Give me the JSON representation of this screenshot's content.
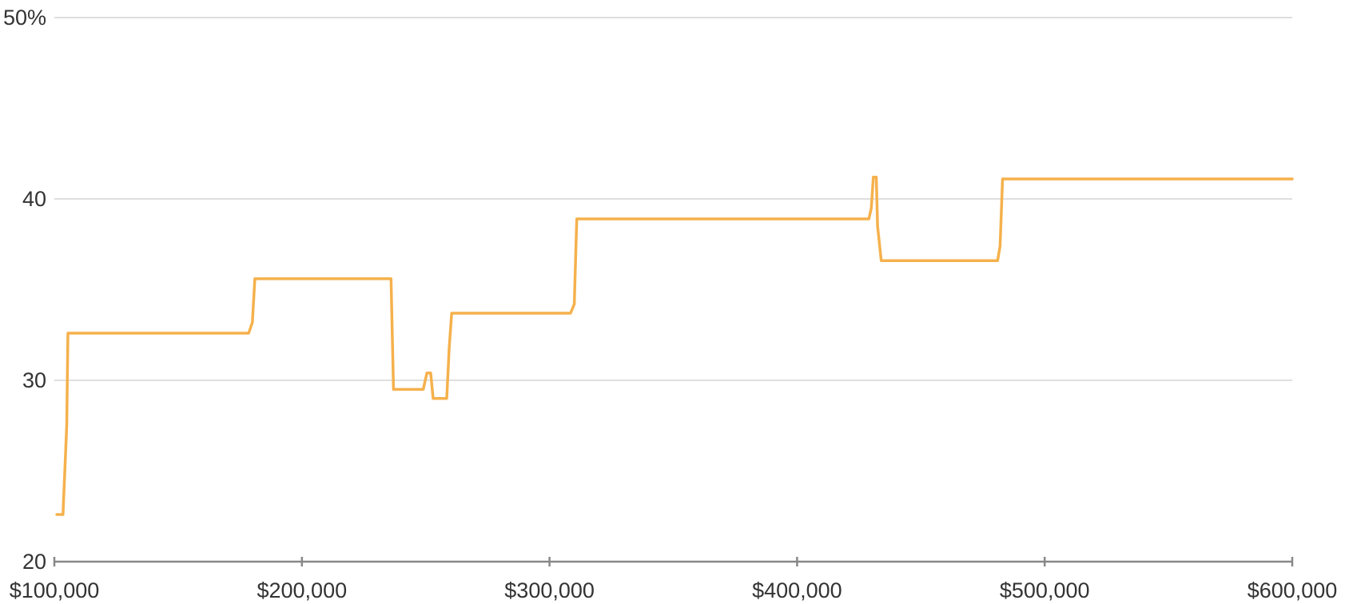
{
  "chart_data": {
    "type": "line",
    "title": "",
    "xlabel": "",
    "ylabel": "",
    "xlim": [
      100000,
      600000
    ],
    "ylim": [
      20,
      50
    ],
    "x_ticks": [
      {
        "value": 100000,
        "label": "$100,000"
      },
      {
        "value": 200000,
        "label": "$200,000"
      },
      {
        "value": 300000,
        "label": "$300,000"
      },
      {
        "value": 400000,
        "label": "$400,000"
      },
      {
        "value": 500000,
        "label": "$500,000"
      },
      {
        "value": 600000,
        "label": "$600,000"
      }
    ],
    "y_ticks": [
      {
        "value": 20,
        "label": "20"
      },
      {
        "value": 30,
        "label": "30"
      },
      {
        "value": 40,
        "label": "40"
      },
      {
        "value": 50,
        "label": "50%"
      }
    ],
    "grid": true,
    "legend": "none",
    "colors": {
      "series": "#f5b14c",
      "grid": "#cccccc",
      "axis": "#888888",
      "text": "#333333"
    },
    "series": [
      {
        "color": "#f5b14c",
        "points": [
          [
            101000,
            22.6
          ],
          [
            103500,
            22.6
          ],
          [
            105000,
            27.5
          ],
          [
            105500,
            32.6
          ],
          [
            178500,
            32.6
          ],
          [
            180000,
            33.2
          ],
          [
            181000,
            35.6
          ],
          [
            236000,
            35.6
          ],
          [
            237000,
            29.5
          ],
          [
            249000,
            29.5
          ],
          [
            250500,
            30.4
          ],
          [
            252000,
            30.4
          ],
          [
            253000,
            29.0
          ],
          [
            258500,
            29.0
          ],
          [
            259500,
            31.8
          ],
          [
            260500,
            33.7
          ],
          [
            308500,
            33.7
          ],
          [
            310000,
            34.2
          ],
          [
            311000,
            38.9
          ],
          [
            429000,
            38.9
          ],
          [
            430000,
            39.5
          ],
          [
            430800,
            41.2
          ],
          [
            432000,
            41.2
          ],
          [
            432500,
            38.5
          ],
          [
            434000,
            36.6
          ],
          [
            481000,
            36.6
          ],
          [
            482000,
            37.4
          ],
          [
            483000,
            41.1
          ],
          [
            600000,
            41.1
          ]
        ]
      }
    ]
  }
}
